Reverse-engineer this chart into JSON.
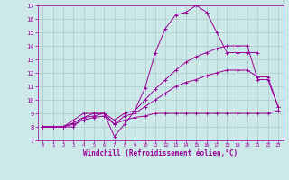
{
  "xlabel": "Windchill (Refroidissement éolien,°C)",
  "ylabel": "",
  "xlim": [
    -0.5,
    23.5
  ],
  "ylim": [
    7,
    17
  ],
  "xticks": [
    0,
    1,
    2,
    3,
    4,
    5,
    6,
    7,
    8,
    9,
    10,
    11,
    12,
    13,
    14,
    15,
    16,
    17,
    18,
    19,
    20,
    21,
    22,
    23
  ],
  "yticks": [
    7,
    8,
    9,
    10,
    11,
    12,
    13,
    14,
    15,
    16,
    17
  ],
  "bg_color": "#cce8e8",
  "grid_color": "#aacccc",
  "line_color": "#990099",
  "lines": [
    {
      "x": [
        0,
        1,
        2,
        3,
        4,
        5,
        6,
        7,
        8,
        9,
        10,
        11,
        12,
        13,
        14,
        15,
        16,
        17,
        18,
        19,
        20,
        21
      ],
      "y": [
        8,
        8,
        8,
        8,
        8.7,
        9,
        9,
        7.3,
        8.2,
        9.2,
        10.9,
        13.5,
        15.3,
        16.3,
        16.5,
        17,
        16.5,
        15,
        13.5,
        13.5,
        13.5,
        13.5
      ]
    },
    {
      "x": [
        0,
        1,
        2,
        3,
        4,
        5,
        6,
        7,
        8,
        9,
        10,
        11,
        12,
        13,
        14,
        15,
        16,
        17,
        18,
        19,
        20,
        21,
        22,
        23
      ],
      "y": [
        8,
        8,
        8,
        8.5,
        9,
        9,
        9,
        8.5,
        9,
        9.2,
        10,
        10.8,
        11.5,
        12.2,
        12.8,
        13.2,
        13.5,
        13.8,
        14,
        14,
        14,
        11.5,
        11.5,
        9.5
      ]
    },
    {
      "x": [
        0,
        1,
        2,
        3,
        4,
        5,
        6,
        7,
        8,
        9,
        10,
        11,
        12,
        13,
        14,
        15,
        16,
        17,
        18,
        19,
        20,
        21,
        22,
        23
      ],
      "y": [
        8,
        8,
        8,
        8.3,
        8.7,
        8.8,
        9,
        8.2,
        8.8,
        9,
        9.5,
        10,
        10.5,
        11,
        11.3,
        11.5,
        11.8,
        12,
        12.2,
        12.2,
        12.2,
        11.7,
        11.7,
        9.5
      ]
    },
    {
      "x": [
        0,
        1,
        2,
        3,
        4,
        5,
        6,
        7,
        8,
        9,
        10,
        11,
        12,
        13,
        14,
        15,
        16,
        17,
        18,
        19,
        20,
        21,
        22,
        23
      ],
      "y": [
        8,
        8,
        8,
        8.2,
        8.5,
        8.7,
        8.8,
        8.2,
        8.5,
        8.7,
        8.8,
        9,
        9,
        9,
        9,
        9,
        9,
        9,
        9,
        9,
        9,
        9,
        9,
        9.2
      ]
    }
  ]
}
